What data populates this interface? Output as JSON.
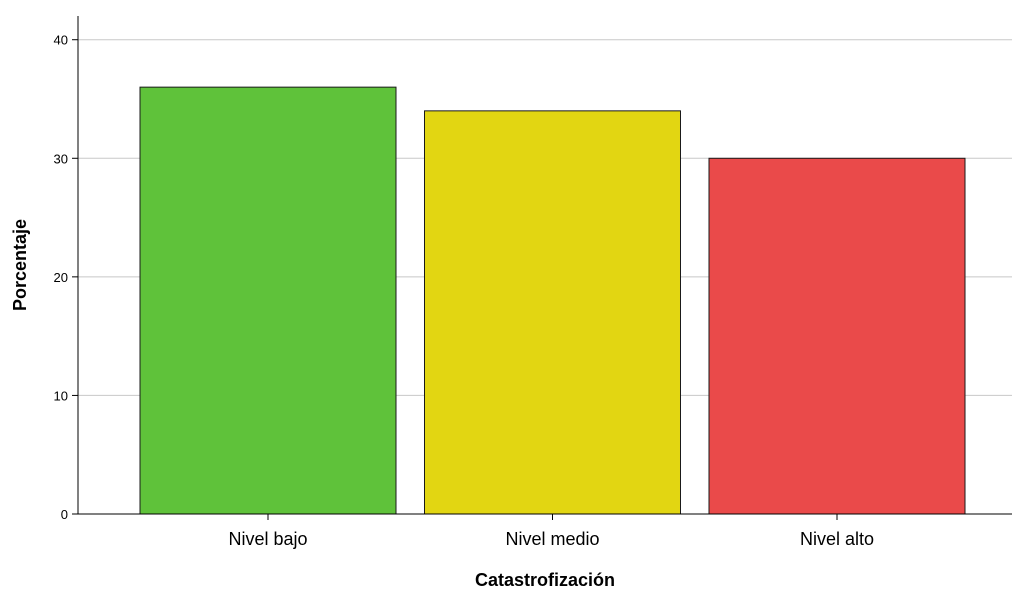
{
  "chart_data": {
    "type": "bar",
    "categories": [
      "Nivel bajo",
      "Nivel medio",
      "Nivel alto"
    ],
    "values": [
      36,
      34,
      30
    ],
    "colors": [
      "#5fc23a",
      "#e2d612",
      "#ea4a4a"
    ],
    "xlabel": "Catastrofización",
    "ylabel": "Porcentaje",
    "ylim": [
      0,
      40
    ],
    "yticks": [
      0,
      10,
      20,
      30,
      40
    ],
    "grid": true,
    "legend": "none"
  }
}
